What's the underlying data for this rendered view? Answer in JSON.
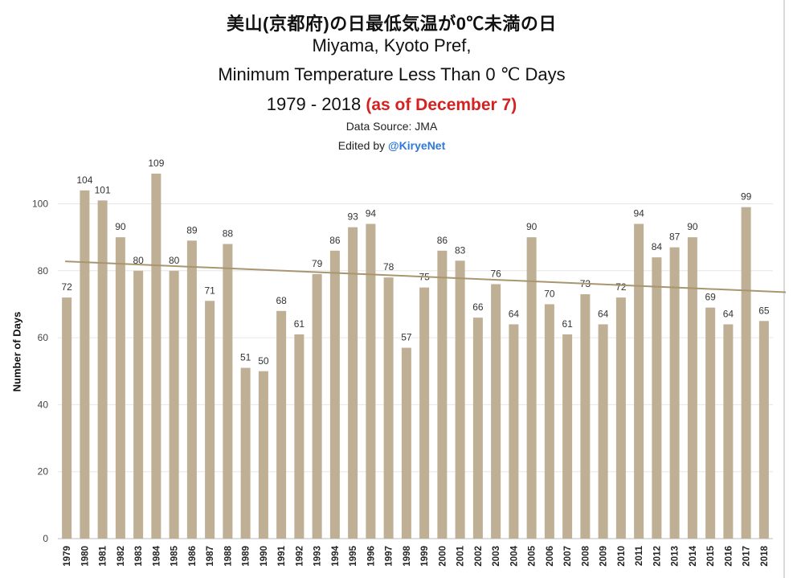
{
  "chart_data": {
    "type": "bar",
    "title": "美山(京都府)の日最低気温が0℃未満の日",
    "subtitle_lines": [
      "Miyama, Kyoto Pref,",
      "Minimum Temperature Less Than 0 ℃ Days"
    ],
    "period": "1979 - 2018",
    "period_note": "(as of December 7)",
    "source": "Data Source: JMA",
    "edited_by_prefix": "Edited by",
    "edited_by_handle": "@KiryeNet",
    "xlabel": "",
    "ylabel": "Number of Days",
    "ylim": [
      0,
      110
    ],
    "yticks": [
      0,
      20,
      40,
      60,
      80,
      100
    ],
    "grid": true,
    "legend": "none",
    "trendline": {
      "start": 82.8,
      "end": 73.6
    },
    "colors": {
      "bar": "#bfaf94",
      "trend": "#a89670",
      "grid": "#e6e6e6",
      "axis": "#bbbbbb"
    },
    "categories": [
      "1979",
      "1980",
      "1981",
      "1982",
      "1983",
      "1984",
      "1985",
      "1986",
      "1987",
      "1988",
      "1989",
      "1990",
      "1991",
      "1992",
      "1993",
      "1994",
      "1995",
      "1996",
      "1997",
      "1998",
      "1999",
      "2000",
      "2001",
      "2002",
      "2003",
      "2004",
      "2005",
      "2006",
      "2007",
      "2008",
      "2009",
      "2010",
      "2011",
      "2012",
      "2013",
      "2014",
      "2015",
      "2016",
      "2017",
      "2018"
    ],
    "values": [
      72,
      104,
      101,
      90,
      80,
      109,
      80,
      89,
      71,
      88,
      51,
      50,
      68,
      61,
      79,
      86,
      93,
      94,
      78,
      57,
      75,
      86,
      83,
      66,
      76,
      64,
      90,
      70,
      61,
      73,
      64,
      72,
      94,
      84,
      87,
      90,
      69,
      64,
      99,
      65
    ]
  }
}
